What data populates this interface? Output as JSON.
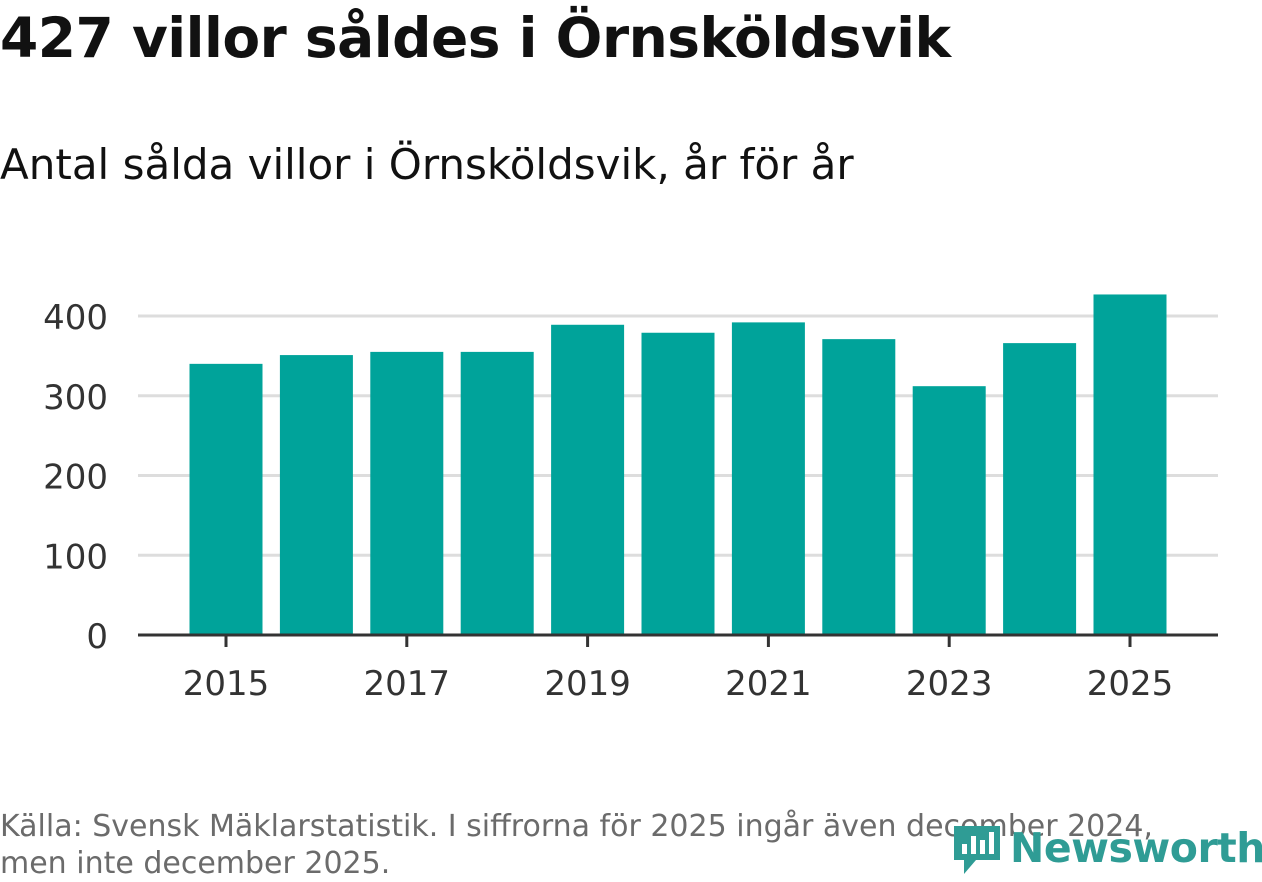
{
  "title": "427 villor såldes i Örnsköldsvik",
  "subtitle": "Antal sålda villor i Örnsköldsvik, år för år",
  "source_line1": "Källa: Svensk Mäklarstatistik. I siffrorna för 2025 ingår även december 2024,",
  "source_line2": "men inte december 2025.",
  "brand": "Newsworthy",
  "colors": {
    "bar": "#00a39a",
    "grid": "#dddddd",
    "axis": "#333333",
    "brand": "#2f9c95"
  },
  "chart_data": {
    "type": "bar",
    "categories": [
      "2015",
      "2016",
      "2017",
      "2018",
      "2019",
      "2020",
      "2021",
      "2022",
      "2023",
      "2024",
      "2025"
    ],
    "values": [
      340,
      351,
      355,
      355,
      389,
      379,
      392,
      371,
      312,
      366,
      427
    ],
    "xtick_labels": [
      "2015",
      "2017",
      "2019",
      "2021",
      "2023",
      "2025"
    ],
    "yticks": [
      0,
      100,
      200,
      300,
      400
    ],
    "ylim": [
      0,
      430
    ],
    "title": "427 villor såldes i Örnsköldsvik",
    "subtitle": "Antal sålda villor i Örnsköldsvik, år för år",
    "xlabel": "",
    "ylabel": "",
    "grid": true
  }
}
